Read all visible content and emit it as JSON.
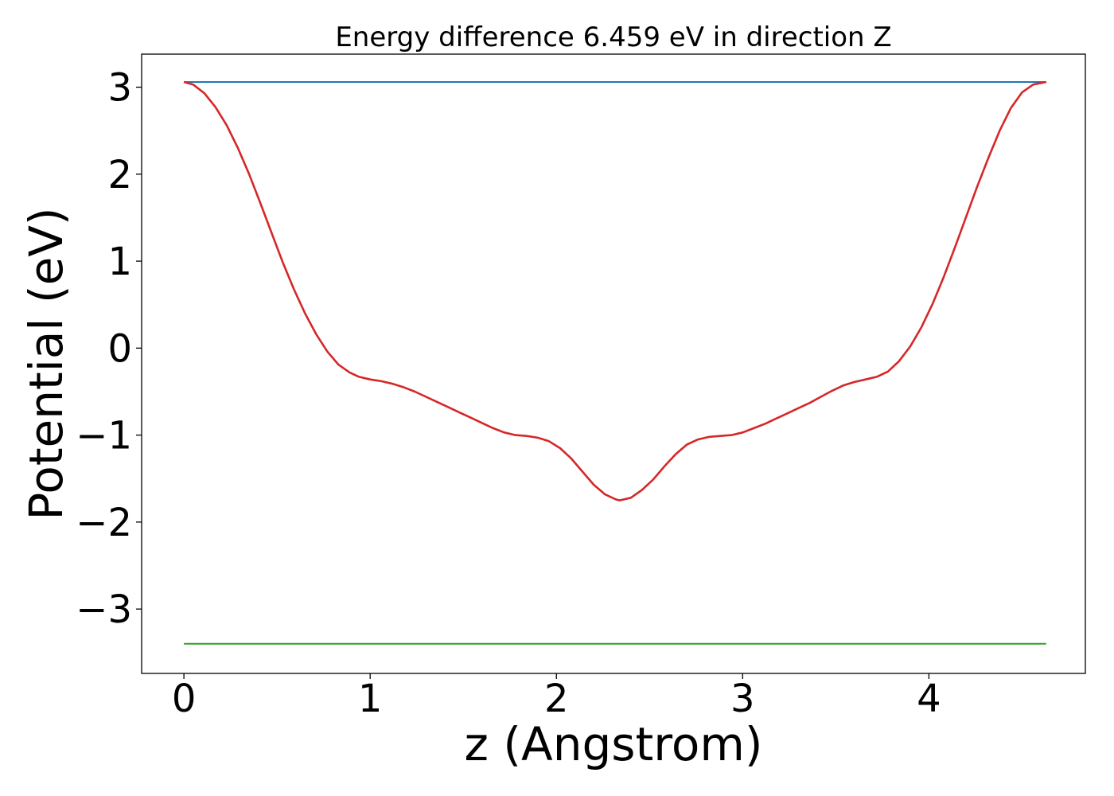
{
  "chart_data": {
    "type": "line",
    "title": "Energy difference 6.459 eV in direction Z",
    "xlabel": "z (Angstrom)",
    "ylabel": "Potential (eV)",
    "xlim": [
      -0.227,
      4.84
    ],
    "ylim": [
      -3.74,
      3.38
    ],
    "xticks": [
      0,
      1,
      2,
      3,
      4
    ],
    "xtick_labels": [
      "0",
      "1",
      "2",
      "3",
      "4"
    ],
    "yticks": [
      3,
      2,
      1,
      0,
      -1,
      -2,
      -3
    ],
    "ytick_labels": [
      "3",
      "2",
      "1",
      "0",
      "−1",
      "−2",
      "−3"
    ],
    "grid": false,
    "legend": "none",
    "series": [
      {
        "color": "#1f77b4",
        "x": [
          0,
          4.63
        ],
        "y": [
          3.06,
          3.06
        ]
      },
      {
        "color": "#2ca02c",
        "x": [
          0,
          4.63
        ],
        "y": [
          -3.4,
          -3.4
        ]
      },
      {
        "color": "#d62728",
        "x": [
          0,
          0.05,
          0.11,
          0.17,
          0.23,
          0.29,
          0.35,
          0.41,
          0.47,
          0.53,
          0.59,
          0.65,
          0.71,
          0.77,
          0.83,
          0.89,
          0.94,
          1.0,
          1.06,
          1.12,
          1.18,
          1.24,
          1.3,
          1.36,
          1.42,
          1.48,
          1.54,
          1.6,
          1.66,
          1.72,
          1.78,
          1.84,
          1.9,
          1.96,
          2.02,
          2.08,
          2.14,
          2.2,
          2.26,
          2.32,
          2.34,
          2.4,
          2.46,
          2.52,
          2.58,
          2.64,
          2.7,
          2.76,
          2.82,
          2.88,
          2.94,
          3.0,
          3.06,
          3.12,
          3.18,
          3.24,
          3.3,
          3.36,
          3.42,
          3.48,
          3.54,
          3.6,
          3.66,
          3.72,
          3.78,
          3.84,
          3.9,
          3.96,
          4.02,
          4.08,
          4.14,
          4.2,
          4.26,
          4.32,
          4.38,
          4.44,
          4.5,
          4.56,
          4.63
        ],
        "y": [
          3.06,
          3.03,
          2.93,
          2.77,
          2.56,
          2.3,
          2.0,
          1.67,
          1.33,
          0.99,
          0.68,
          0.4,
          0.16,
          -0.04,
          -0.19,
          -0.28,
          -0.33,
          -0.36,
          -0.38,
          -0.41,
          -0.45,
          -0.5,
          -0.56,
          -0.62,
          -0.68,
          -0.74,
          -0.8,
          -0.86,
          -0.92,
          -0.97,
          -1.0,
          -1.01,
          -1.03,
          -1.07,
          -1.15,
          -1.27,
          -1.42,
          -1.57,
          -1.68,
          -1.74,
          -1.75,
          -1.72,
          -1.63,
          -1.51,
          -1.36,
          -1.22,
          -1.11,
          -1.05,
          -1.02,
          -1.01,
          -1.0,
          -0.97,
          -0.92,
          -0.87,
          -0.81,
          -0.75,
          -0.69,
          -0.63,
          -0.56,
          -0.49,
          -0.43,
          -0.39,
          -0.36,
          -0.33,
          -0.27,
          -0.15,
          0.02,
          0.24,
          0.51,
          0.82,
          1.16,
          1.51,
          1.86,
          2.19,
          2.5,
          2.76,
          2.94,
          3.03,
          3.06
        ]
      }
    ]
  }
}
